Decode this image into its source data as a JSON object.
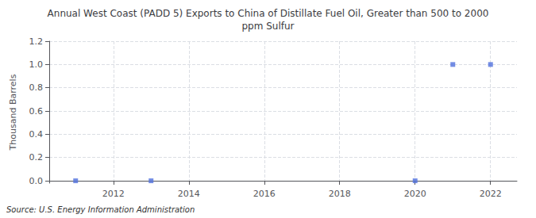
{
  "chart_data": {
    "type": "scatter",
    "title": "Annual West Coast (PADD 5) Exports to China of Distillate Fuel Oil, Greater than 500 to 2000\nppm Sulfur",
    "ylabel": "Thousand Barrels",
    "source": "Source: U.S. Energy Information Administration",
    "x": [
      2011,
      2013,
      2020,
      2021,
      2022
    ],
    "values": [
      0.0,
      0.0,
      0.0,
      1.0,
      1.0
    ],
    "xlim": [
      2010.3,
      2022.7
    ],
    "xticks": [
      2012,
      2014,
      2016,
      2018,
      2020,
      2022
    ],
    "ylim": [
      -0.02,
      1.2
    ],
    "yticks": [
      {
        "value": 0.0,
        "label": "0.0"
      },
      0.2,
      0.4,
      0.6,
      0.8,
      {
        "value": 1.0,
        "label": "1.0"
      },
      1.2
    ],
    "marker": "square",
    "grid": true
  }
}
